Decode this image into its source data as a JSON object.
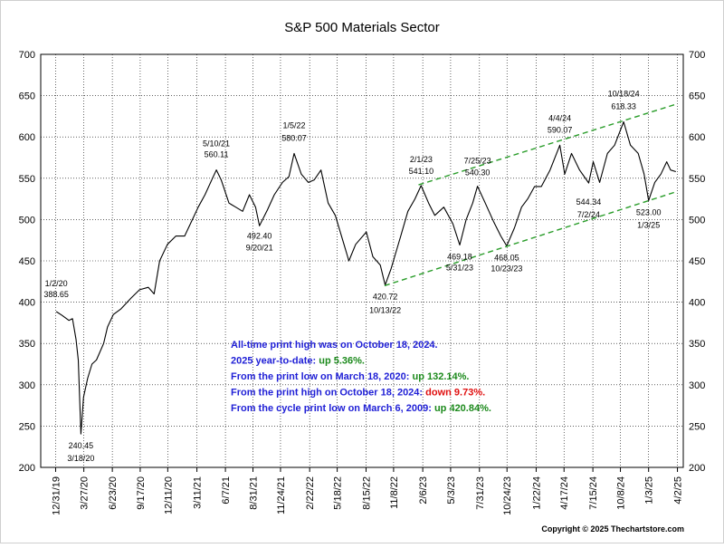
{
  "chart_data": {
    "type": "line",
    "title": "S&P 500 Materials Sector",
    "xlabel": "",
    "ylabel": "",
    "ylim": [
      200,
      700
    ],
    "y_ticks": [
      200,
      250,
      300,
      350,
      400,
      450,
      500,
      550,
      600,
      650,
      700
    ],
    "x_range": [
      "2019-11-15",
      "2025-04-20"
    ],
    "x_ticks": [
      "12/31/19",
      "3/27/20",
      "6/23/20",
      "9/17/20",
      "12/11/20",
      "3/11/21",
      "6/7/21",
      "8/31/21",
      "11/24/21",
      "2/22/22",
      "5/18/22",
      "8/15/22",
      "11/8/22",
      "2/6/23",
      "5/3/23",
      "7/31/23",
      "10/24/23",
      "1/22/24",
      "4/17/24",
      "7/15/24",
      "10/8/24",
      "1/3/25",
      "4/2/25"
    ],
    "grid": true,
    "series": [
      {
        "name": "",
        "color": "#000000",
        "x": [
          "2020-01-02",
          "2020-01-20",
          "2020-02-10",
          "2020-02-21",
          "2020-03-03",
          "2020-03-10",
          "2020-03-18",
          "2020-03-26",
          "2020-04-08",
          "2020-04-21",
          "2020-05-05",
          "2020-05-27",
          "2020-06-08",
          "2020-06-26",
          "2020-07-20",
          "2020-08-20",
          "2020-09-15",
          "2020-10-12",
          "2020-10-30",
          "2020-11-16",
          "2020-12-10",
          "2021-01-05",
          "2021-02-01",
          "2021-02-25",
          "2021-03-15",
          "2021-04-05",
          "2021-04-28",
          "2021-05-10",
          "2021-05-25",
          "2021-06-18",
          "2021-07-09",
          "2021-07-30",
          "2021-08-20",
          "2021-09-08",
          "2021-09-20",
          "2021-10-15",
          "2021-11-05",
          "2021-11-30",
          "2021-12-20",
          "2022-01-05",
          "2022-01-27",
          "2022-02-18",
          "2022-03-08",
          "2022-03-29",
          "2022-04-20",
          "2022-05-12",
          "2022-06-08",
          "2022-06-23",
          "2022-07-14",
          "2022-08-16",
          "2022-09-05",
          "2022-09-28",
          "2022-10-13",
          "2022-10-31",
          "2022-11-30",
          "2022-12-22",
          "2023-01-13",
          "2023-02-01",
          "2023-02-24",
          "2023-03-15",
          "2023-04-12",
          "2023-05-10",
          "2023-05-31",
          "2023-06-20",
          "2023-07-10",
          "2023-07-25",
          "2023-08-18",
          "2023-09-12",
          "2023-10-05",
          "2023-10-23",
          "2023-11-16",
          "2023-12-08",
          "2023-12-27",
          "2024-01-17",
          "2024-02-07",
          "2024-03-05",
          "2024-04-04",
          "2024-04-19",
          "2024-05-10",
          "2024-06-04",
          "2024-07-02",
          "2024-07-16",
          "2024-08-05",
          "2024-08-29",
          "2024-09-20",
          "2024-10-18",
          "2024-11-08",
          "2024-12-02",
          "2024-12-20",
          "2025-01-03",
          "2025-01-22",
          "2025-02-10",
          "2025-02-28",
          "2025-03-12",
          "2025-03-28"
        ],
        "values": [
          388.65,
          384,
          378,
          380,
          355,
          330,
          240.45,
          285,
          308,
          325,
          330,
          350,
          370,
          385,
          392,
          405,
          415,
          418,
          410,
          450,
          470,
          480,
          480,
          500,
          515,
          530,
          550,
          560.11,
          548,
          520,
          515,
          510,
          530,
          515,
          492.4,
          512,
          530,
          545,
          552,
          580.07,
          555,
          545,
          548,
          560,
          520,
          505,
          470,
          450,
          470,
          485,
          455,
          445,
          420.72,
          440,
          480,
          510,
          525,
          541.1,
          520,
          505,
          515,
          495,
          469.18,
          500,
          520,
          540.3,
          520,
          498,
          480,
          468.05,
          490,
          515,
          525,
          540,
          540,
          560,
          590.07,
          555,
          580,
          560,
          544.34,
          570,
          545,
          580,
          590,
          618.33,
          590,
          580,
          555,
          523.0,
          545,
          555,
          570,
          560,
          558
        ]
      },
      {
        "name": "",
        "color": "#2a9d2a",
        "dashed": true,
        "x": [
          "2022-10-11",
          "2025-04-01"
        ],
        "values": [
          420,
          534
        ]
      },
      {
        "name": "",
        "color": "#2a9d2a",
        "dashed": true,
        "x": [
          "2023-01-24",
          "2025-04-01"
        ],
        "values": [
          542,
          640
        ]
      }
    ],
    "annotations": [
      {
        "date": "1/2/20",
        "value": "388.65"
      },
      {
        "date": "3/18/20",
        "value": "240.45"
      },
      {
        "date": "5/10/21",
        "value": "560.11"
      },
      {
        "date": "9/20/21",
        "value": "492.40"
      },
      {
        "date": "1/5/22",
        "value": "580.07"
      },
      {
        "date": "10/13/22",
        "value": "420.72"
      },
      {
        "date": "2/1/23",
        "value": "541.10"
      },
      {
        "date": "5/31/23",
        "value": "469.18"
      },
      {
        "date": "7/25/23",
        "value": "540.30"
      },
      {
        "date": "10/23/23",
        "value": "468.05"
      },
      {
        "date": "4/4/24",
        "value": "590.07"
      },
      {
        "date": "7/2/24",
        "value": "544.34"
      },
      {
        "date": "10/18/24",
        "value": "618.33"
      },
      {
        "date": "1/3/25",
        "value": "523.00"
      }
    ],
    "stats_box": [
      {
        "prefix": "All-time print high was on October 18, 2024.",
        "value": "",
        "value_color": "#1f1fd6"
      },
      {
        "prefix": "2025 year-to-date:  ",
        "value": "up 5.36%.",
        "value_color": "#1c8a1c"
      },
      {
        "prefix": "From the print low on March 18, 2020:  ",
        "value": "up 132.14%.",
        "value_color": "#1c8a1c"
      },
      {
        "prefix": "From the print high on October 18, 2024:  ",
        "value": "down 9.73%.",
        "value_color": "#e01010"
      },
      {
        "prefix": "From the cycle print low on March 6, 2009:  ",
        "value": "up 420.84%.",
        "value_color": "#1c8a1c"
      }
    ],
    "copyright": "Copyright © 2025 Thechartstore.com"
  }
}
